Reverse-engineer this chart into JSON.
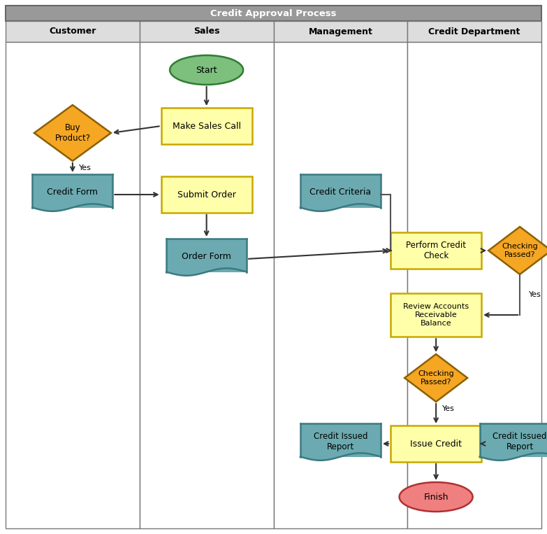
{
  "title": "Credit Approval Process",
  "lanes": [
    "Customer",
    "Sales",
    "Management",
    "Credit Department"
  ],
  "title_bg": "#999999",
  "title_text_color": "#ffffff",
  "subheader_bg": "#dddddd",
  "subheader_text_color": "#000000",
  "bg_color": "#ffffff",
  "colors": {
    "green_fill": "#7dbf7d",
    "green_border": "#2e7d32",
    "pink_fill": "#f08080",
    "pink_border": "#b03030",
    "yellow_fill": "#ffffaa",
    "yellow_border": "#c8a800",
    "teal_fill": "#6baab0",
    "teal_border": "#3a7a80",
    "orange_fill": "#f5a623",
    "orange_border": "#8b6000",
    "line_color": "#555555",
    "arrow_color": "#333333"
  }
}
